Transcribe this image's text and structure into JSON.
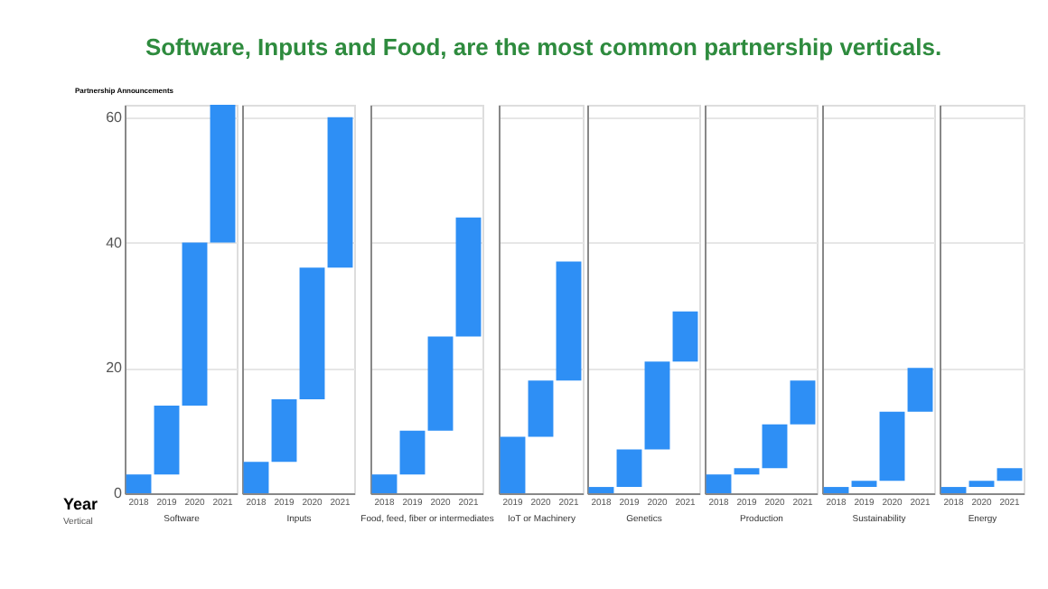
{
  "chart_data": [
    {
      "type": "bar",
      "title": "Software, Inputs and Food, are the most common partnership verticals.",
      "ylabel": "Partnership Announcements",
      "xlabel": "Software",
      "annotations": [
        "Year",
        "Vertical"
      ],
      "categories": [
        "2018",
        "2019",
        "2020",
        "2021"
      ],
      "base": [
        0,
        3,
        14,
        40
      ],
      "values": [
        3,
        11,
        26,
        22
      ],
      "color": "#2e8ff5",
      "ylim": [
        0,
        62
      ],
      "yticks": [
        0,
        20,
        40,
        60
      ],
      "grid": "y",
      "legend": false
    },
    {
      "type": "bar",
      "xlabel": "Inputs",
      "categories": [
        "2018",
        "2019",
        "2020",
        "2021"
      ],
      "base": [
        0,
        5,
        15,
        36
      ],
      "values": [
        5,
        10,
        21,
        24
      ],
      "color": "#2e8ff5",
      "ylim": [
        0,
        62
      ],
      "yticks": [
        0,
        20,
        40,
        60
      ],
      "grid": "y",
      "tick_labels": "x",
      "legend": false
    },
    {
      "type": "bar",
      "xlabel": "Food, feed, fiber or intermediates",
      "categories": [
        "2018",
        "2019",
        "2020",
        "2021"
      ],
      "base": [
        0,
        3,
        10,
        25
      ],
      "values": [
        3,
        7,
        15,
        19
      ],
      "color": "#2e8ff5",
      "ylim": [
        0,
        62
      ],
      "yticks": [
        0,
        20,
        40,
        60
      ],
      "grid": "y",
      "tick_labels": "x",
      "legend": false
    },
    {
      "type": "bar",
      "xlabel": "IoT or Machinery",
      "categories": [
        "2019",
        "2020",
        "2021"
      ],
      "base": [
        0,
        9,
        18
      ],
      "values": [
        9,
        9,
        19
      ],
      "color": "#2e8ff5",
      "ylim": [
        0,
        62
      ],
      "yticks": [
        0,
        20,
        40,
        60
      ],
      "grid": "y",
      "tick_labels": "x",
      "legend": false
    },
    {
      "type": "bar",
      "xlabel": "Genetics",
      "categories": [
        "2018",
        "2019",
        "2020",
        "2021"
      ],
      "base": [
        0,
        1,
        7,
        21
      ],
      "values": [
        1,
        6,
        14,
        8
      ],
      "color": "#2e8ff5",
      "ylim": [
        0,
        62
      ],
      "yticks": [
        0,
        20,
        40,
        60
      ],
      "grid": "y",
      "tick_labels": "x",
      "legend": false
    },
    {
      "type": "bar",
      "xlabel": "Production",
      "categories": [
        "2018",
        "2019",
        "2020",
        "2021"
      ],
      "base": [
        0,
        3,
        4,
        11
      ],
      "values": [
        3,
        1,
        7,
        7
      ],
      "color": "#2e8ff5",
      "ylim": [
        0,
        62
      ],
      "yticks": [
        0,
        20,
        40,
        60
      ],
      "grid": "y",
      "tick_labels": "x",
      "legend": false
    },
    {
      "type": "bar",
      "xlabel": "Sustainability",
      "categories": [
        "2018",
        "2019",
        "2020",
        "2021"
      ],
      "base": [
        0,
        1,
        2,
        13
      ],
      "values": [
        1,
        1,
        11,
        7
      ],
      "color": "#2e8ff5",
      "ylim": [
        0,
        62
      ],
      "yticks": [
        0,
        20,
        40,
        60
      ],
      "grid": "y",
      "tick_labels": "x",
      "legend": false
    },
    {
      "type": "bar",
      "xlabel": "Energy",
      "categories": [
        "2018",
        "2020",
        "2021"
      ],
      "base": [
        0,
        1,
        2
      ],
      "values": [
        1,
        1,
        2
      ],
      "color": "#2e8ff5",
      "ylim": [
        0,
        62
      ],
      "yticks": [
        0,
        20,
        40,
        60
      ],
      "grid": "y",
      "tick_labels": "x",
      "legend": false
    }
  ]
}
